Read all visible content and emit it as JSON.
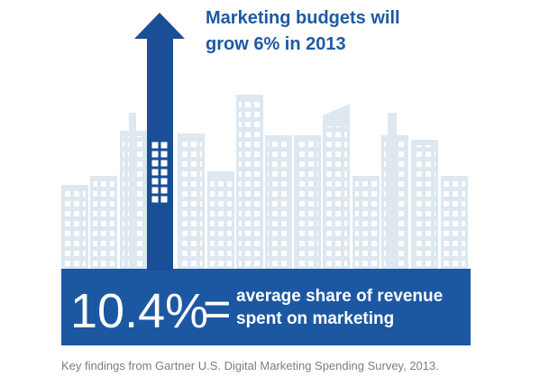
{
  "headline": {
    "lines": [
      "Marketing budgets will",
      "grow 6% in 2013"
    ]
  },
  "banner": {
    "stat": "10.4%",
    "equals": "=",
    "lines": [
      "average share of revenue",
      "spent on marketing"
    ]
  },
  "caption": "Key findings from Gartner U.S. Digital Marketing Spending Survey, 2013."
}
